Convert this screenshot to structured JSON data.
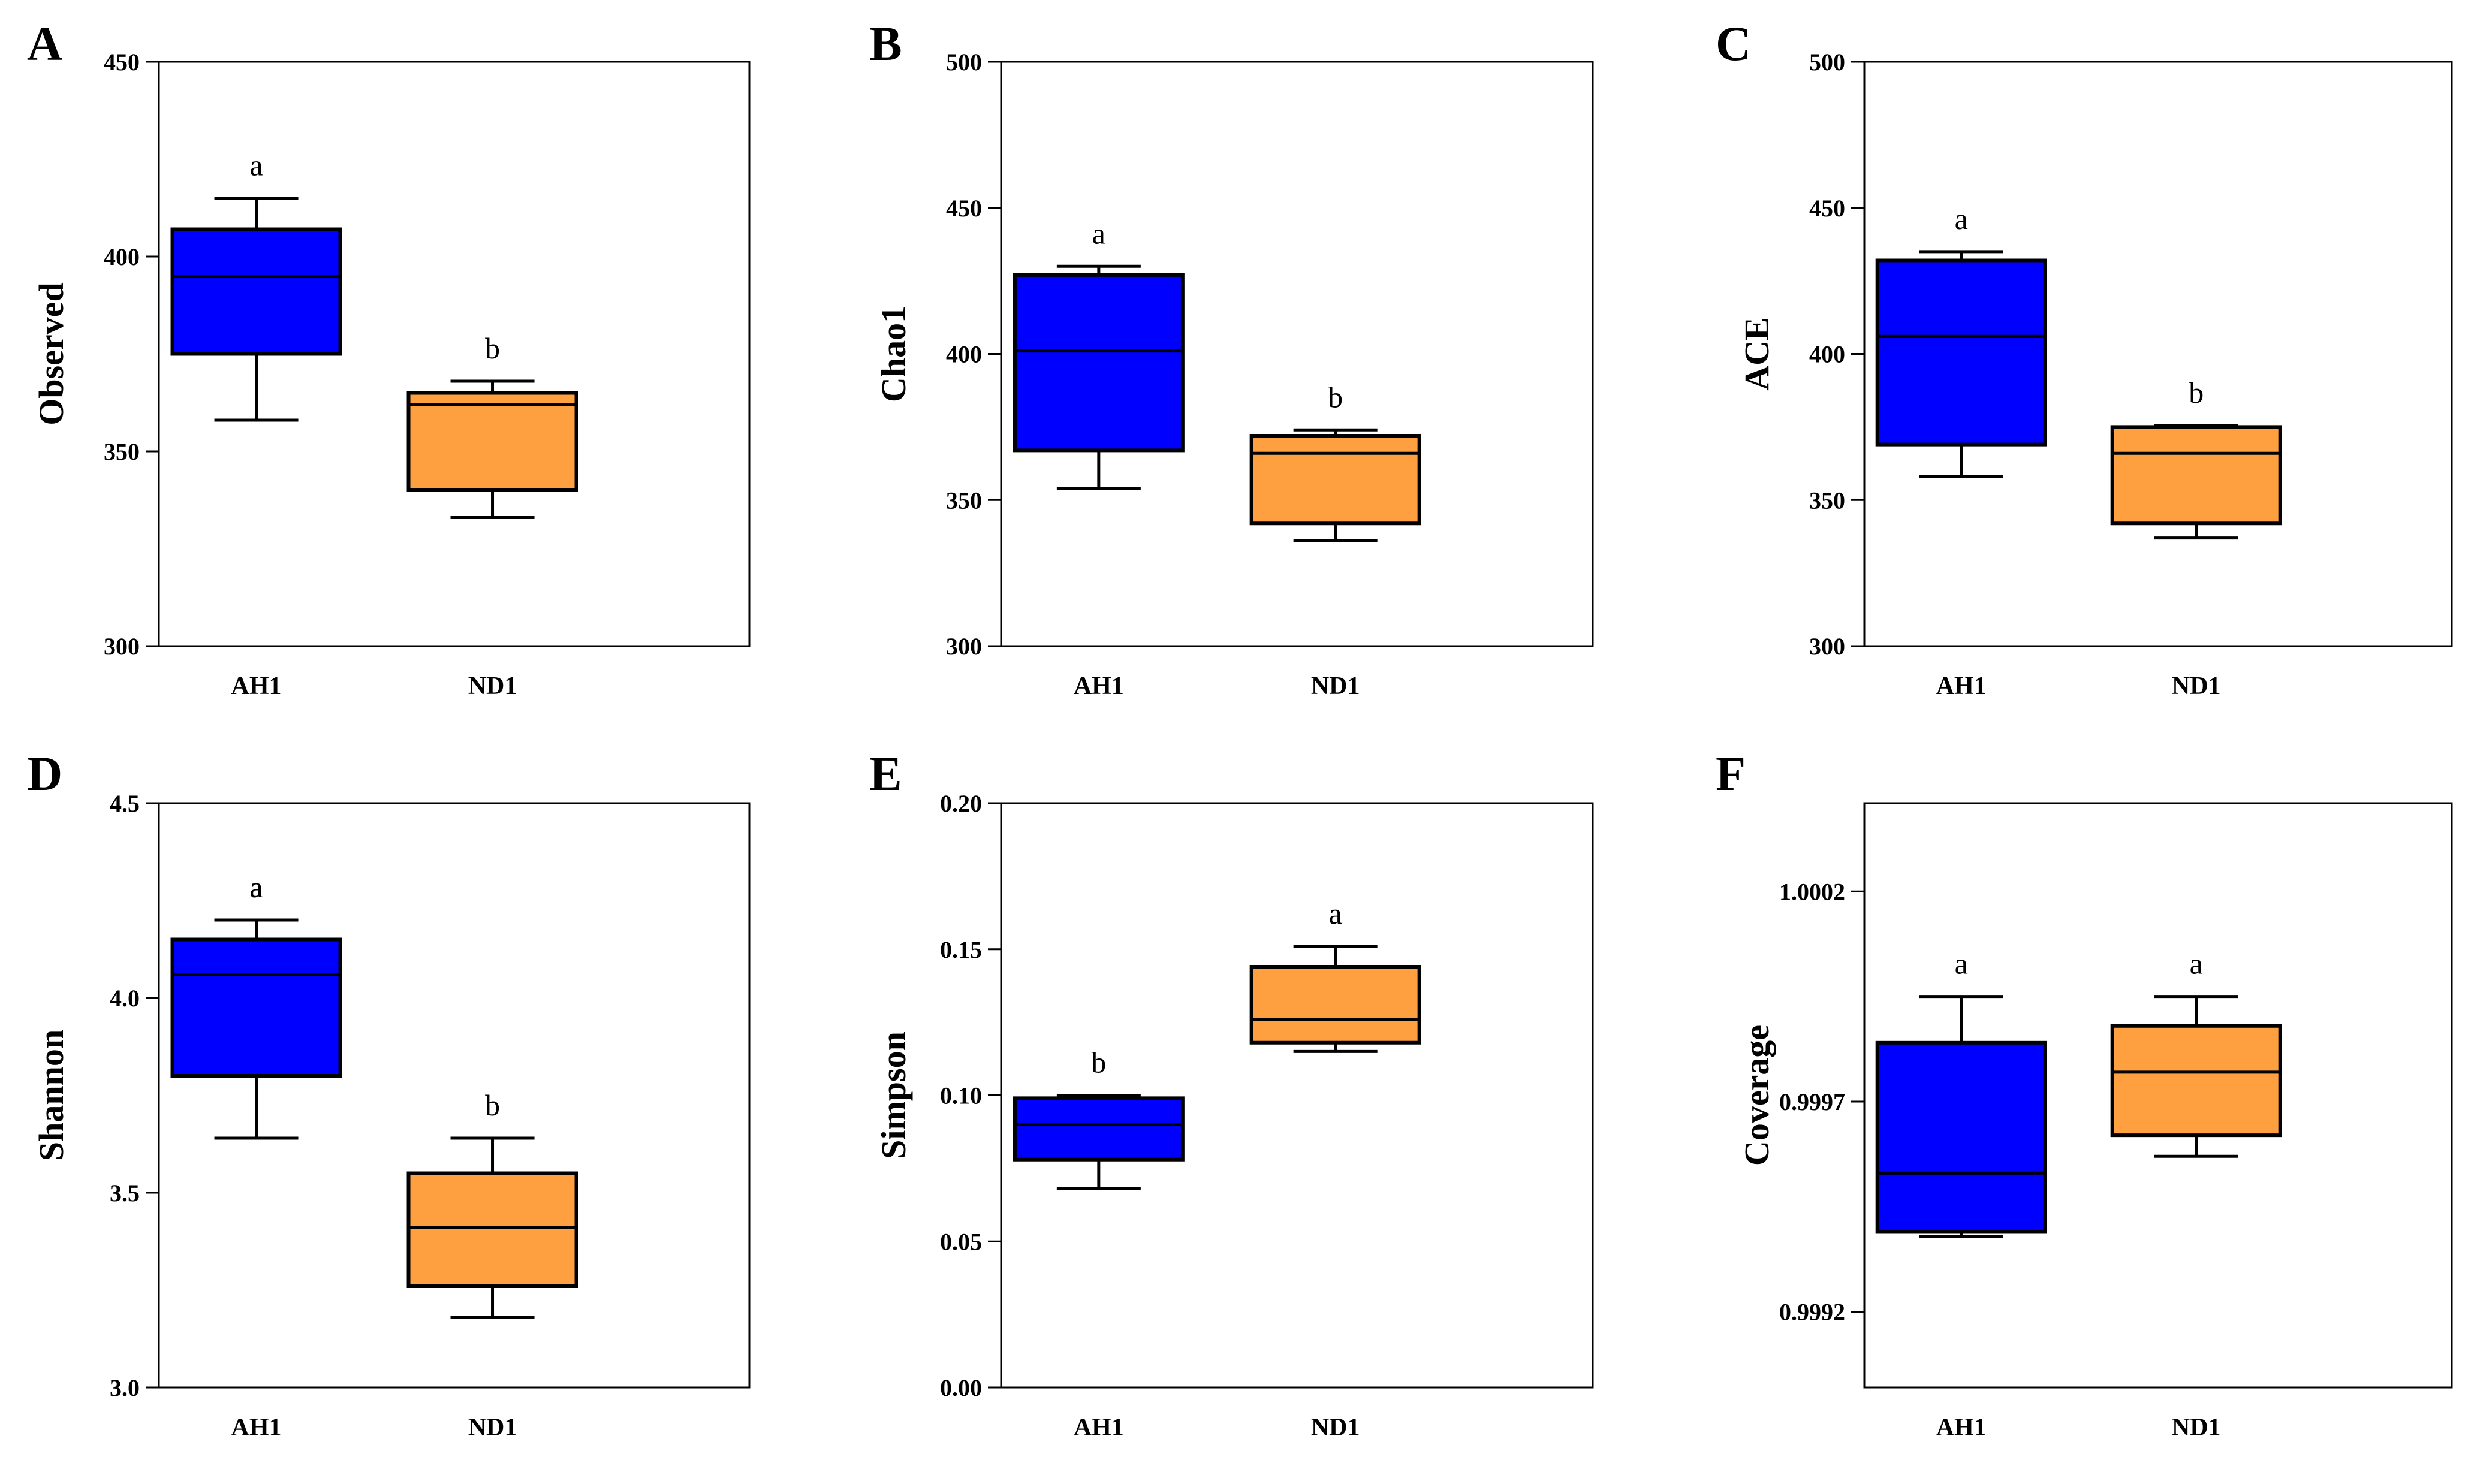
{
  "chart_data": [
    {
      "type": "box",
      "panel": "A",
      "ylabel": "Observed",
      "ylim": [
        300,
        450
      ],
      "yticks": [
        300,
        350,
        400,
        450
      ],
      "ytick_labels": [
        "300",
        "350",
        "400",
        "450"
      ],
      "categories": [
        "AH1",
        "ND1"
      ],
      "boxes": [
        {
          "group": "AH1",
          "min": 358,
          "q1": 375,
          "median": 395,
          "q3": 407,
          "max": 415,
          "label": "a",
          "color": "#0000FF"
        },
        {
          "group": "ND1",
          "min": 333,
          "q1": 340,
          "median": 362,
          "q3": 365,
          "max": 368,
          "label": "b",
          "color": "#FFA040"
        }
      ]
    },
    {
      "type": "box",
      "panel": "B",
      "ylabel": "Chao1",
      "ylim": [
        300,
        500
      ],
      "yticks": [
        300,
        350,
        400,
        450,
        500
      ],
      "ytick_labels": [
        "300",
        "350",
        "400",
        "450",
        "500"
      ],
      "categories": [
        "AH1",
        "ND1"
      ],
      "boxes": [
        {
          "group": "AH1",
          "min": 354,
          "q1": 367,
          "median": 401,
          "q3": 427,
          "max": 430,
          "label": "a",
          "color": "#0000FF"
        },
        {
          "group": "ND1",
          "min": 336,
          "q1": 342,
          "median": 366,
          "q3": 372,
          "max": 374,
          "label": "b",
          "color": "#FFA040"
        }
      ]
    },
    {
      "type": "box",
      "panel": "C",
      "ylabel": "ACE",
      "ylim": [
        300,
        500
      ],
      "yticks": [
        300,
        350,
        400,
        450,
        500
      ],
      "ytick_labels": [
        "300",
        "350",
        "400",
        "450",
        "500"
      ],
      "categories": [
        "AH1",
        "ND1"
      ],
      "boxes": [
        {
          "group": "AH1",
          "min": 358,
          "q1": 369,
          "median": 406,
          "q3": 432,
          "max": 435,
          "label": "a",
          "color": "#0000FF"
        },
        {
          "group": "ND1",
          "min": 337,
          "q1": 342,
          "median": 366,
          "q3": 375,
          "max": 375.5,
          "label": "b",
          "color": "#FFA040"
        }
      ]
    },
    {
      "type": "box",
      "panel": "D",
      "ylabel": "Shannon",
      "ylim": [
        3.0,
        4.5
      ],
      "yticks": [
        3.0,
        3.5,
        4.0,
        4.5
      ],
      "ytick_labels": [
        "3.0",
        "3.5",
        "4.0",
        "4.5"
      ],
      "categories": [
        "AH1",
        "ND1"
      ],
      "boxes": [
        {
          "group": "AH1",
          "min": 3.64,
          "q1": 3.8,
          "median": 4.06,
          "q3": 4.15,
          "max": 4.2,
          "label": "a",
          "color": "#0000FF"
        },
        {
          "group": "ND1",
          "min": 3.18,
          "q1": 3.26,
          "median": 3.41,
          "q3": 3.55,
          "max": 3.64,
          "label": "b",
          "color": "#FFA040"
        }
      ]
    },
    {
      "type": "box",
      "panel": "E",
      "ylabel": "Simpson",
      "ylim": [
        0.0,
        0.2
      ],
      "yticks": [
        0.0,
        0.05,
        0.1,
        0.15,
        0.2
      ],
      "ytick_labels": [
        "0.00",
        "0.05",
        "0.10",
        "0.15",
        "0.20"
      ],
      "categories": [
        "AH1",
        "ND1"
      ],
      "boxes": [
        {
          "group": "AH1",
          "min": 0.068,
          "q1": 0.078,
          "median": 0.09,
          "q3": 0.099,
          "max": 0.1,
          "label": "b",
          "color": "#0000FF"
        },
        {
          "group": "ND1",
          "min": 0.115,
          "q1": 0.118,
          "median": 0.126,
          "q3": 0.144,
          "max": 0.151,
          "label": "a",
          "color": "#FFA040"
        }
      ]
    },
    {
      "type": "box",
      "panel": "F",
      "ylabel": "Coverage",
      "ylim": [
        0.99902,
        1.00041
      ],
      "yticks": [
        0.9992,
        0.9997,
        1.0002
      ],
      "ytick_labels": [
        "0.9992",
        "0.9997",
        "1.0002"
      ],
      "categories": [
        "AH1",
        "ND1"
      ],
      "boxes": [
        {
          "group": "AH1",
          "min": 0.99938,
          "q1": 0.99939,
          "median": 0.99953,
          "q3": 0.99984,
          "max": 0.99995,
          "label": "a",
          "color": "#0000FF"
        },
        {
          "group": "ND1",
          "min": 0.99957,
          "q1": 0.99962,
          "median": 0.99977,
          "q3": 0.99988,
          "max": 0.99995,
          "label": "a",
          "color": "#FFA040"
        }
      ]
    }
  ]
}
